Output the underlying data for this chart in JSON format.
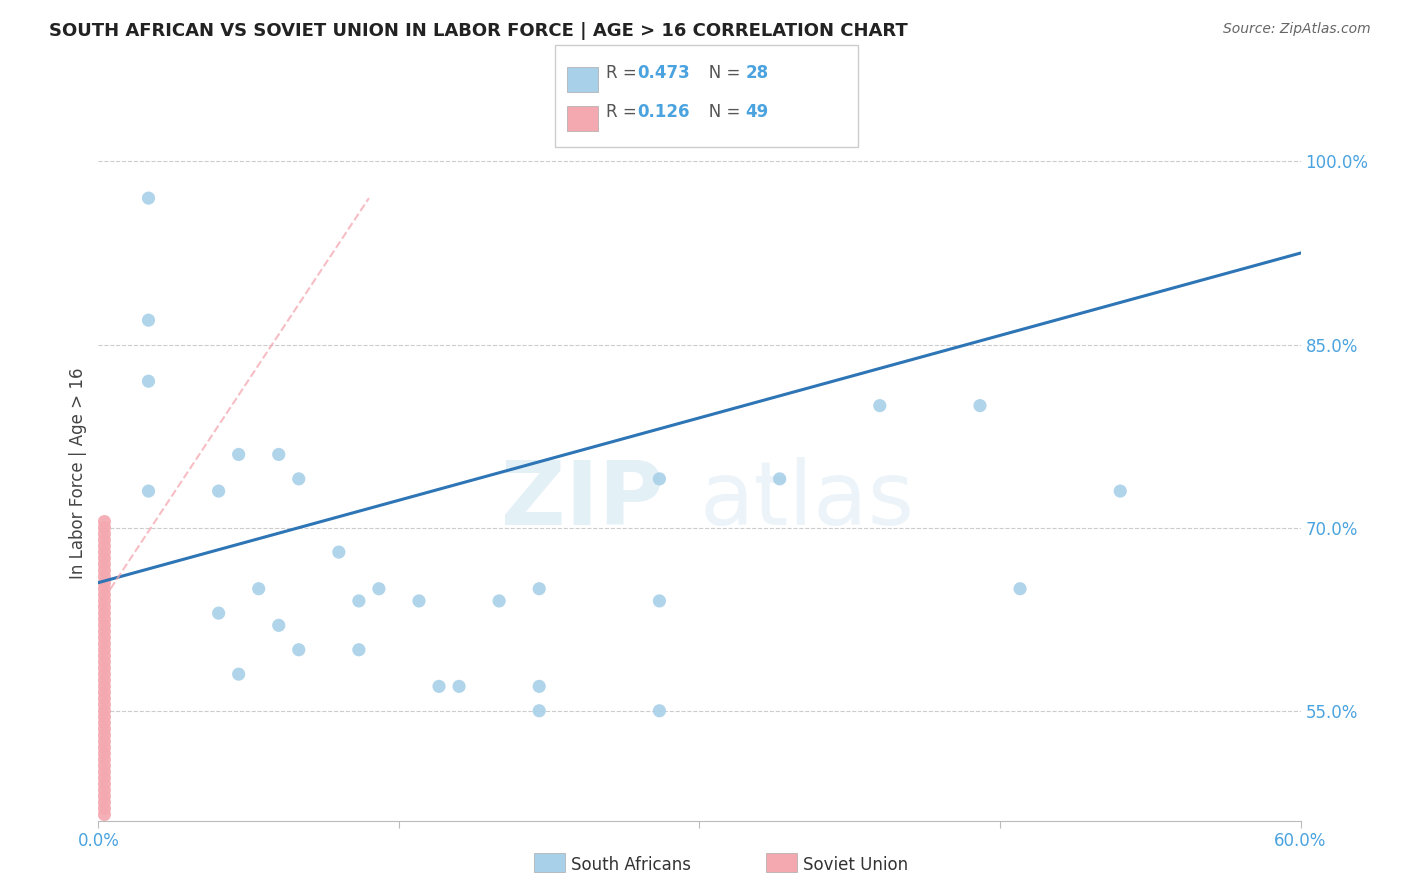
{
  "title": "SOUTH AFRICAN VS SOVIET UNION IN LABOR FORCE | AGE > 16 CORRELATION CHART",
  "source": "Source: ZipAtlas.com",
  "ylabel_label": "In Labor Force | Age > 16",
  "watermark_top": "ZIP",
  "watermark_bot": "atlas",
  "xlim": [
    0.0,
    0.6
  ],
  "ylim": [
    0.46,
    1.03
  ],
  "yticks": [
    0.55,
    0.7,
    0.85,
    1.0
  ],
  "ytick_labels": [
    "55.0%",
    "70.0%",
    "85.0%",
    "100.0%"
  ],
  "xticks": [
    0.0,
    0.15,
    0.3,
    0.45,
    0.6
  ],
  "xtick_labels": [
    "0.0%",
    "",
    "",
    "",
    "60.0%"
  ],
  "blue_color": "#a8d0e8",
  "pink_color": "#f4a8b0",
  "line_color": "#2e75b6",
  "dashed_color": "#f4a8b0",
  "grid_color": "#cccccc",
  "bg_color": "#ffffff",
  "tick_label_color": "#4aa3df",
  "south_african_x": [
    0.025,
    0.025,
    0.025,
    0.025,
    0.06,
    0.07,
    0.09,
    0.1,
    0.12,
    0.14,
    0.16,
    0.2,
    0.22,
    0.28,
    0.34,
    0.39,
    0.44,
    0.46,
    0.51
  ],
  "south_african_y": [
    0.97,
    0.87,
    0.82,
    0.73,
    0.73,
    0.76,
    0.76,
    0.74,
    0.68,
    0.65,
    0.64,
    0.64,
    0.65,
    0.74,
    0.74,
    0.8,
    0.8,
    0.65,
    0.73
  ],
  "south_african_x2": [
    0.06,
    0.08,
    0.1,
    0.13,
    0.18,
    0.22,
    0.28
  ],
  "south_african_y2": [
    0.63,
    0.65,
    0.6,
    0.64,
    0.57,
    0.57,
    0.64
  ],
  "south_african_x3": [
    0.07,
    0.09,
    0.13,
    0.17,
    0.22,
    0.28
  ],
  "south_african_y3": [
    0.58,
    0.62,
    0.6,
    0.57,
    0.55,
    0.55
  ],
  "soviet_x": [
    0.003,
    0.003,
    0.003,
    0.003,
    0.003,
    0.003,
    0.003,
    0.003,
    0.003,
    0.003,
    0.003,
    0.003,
    0.003,
    0.003,
    0.003,
    0.003,
    0.003,
    0.003,
    0.003,
    0.003,
    0.003,
    0.003,
    0.003,
    0.003,
    0.003,
    0.003,
    0.003,
    0.003,
    0.003,
    0.003,
    0.003,
    0.003,
    0.003,
    0.003,
    0.003,
    0.003,
    0.003,
    0.003,
    0.003,
    0.003,
    0.003,
    0.003,
    0.003,
    0.003,
    0.003,
    0.003,
    0.003,
    0.003,
    0.003
  ],
  "soviet_y": [
    0.69,
    0.685,
    0.68,
    0.675,
    0.67,
    0.665,
    0.66,
    0.655,
    0.65,
    0.645,
    0.64,
    0.635,
    0.63,
    0.625,
    0.62,
    0.615,
    0.61,
    0.605,
    0.6,
    0.595,
    0.59,
    0.585,
    0.58,
    0.575,
    0.57,
    0.565,
    0.56,
    0.555,
    0.55,
    0.545,
    0.54,
    0.535,
    0.53,
    0.525,
    0.52,
    0.515,
    0.51,
    0.505,
    0.5,
    0.495,
    0.49,
    0.485,
    0.48,
    0.475,
    0.47,
    0.465,
    0.695,
    0.7,
    0.705
  ],
  "blue_trend_x0": 0.0,
  "blue_trend_y0": 0.655,
  "blue_trend_x1": 0.6,
  "blue_trend_y1": 0.925,
  "pink_trend_x0": 0.0,
  "pink_trend_y0": 0.635,
  "pink_trend_x1": 0.135,
  "pink_trend_y1": 0.97
}
